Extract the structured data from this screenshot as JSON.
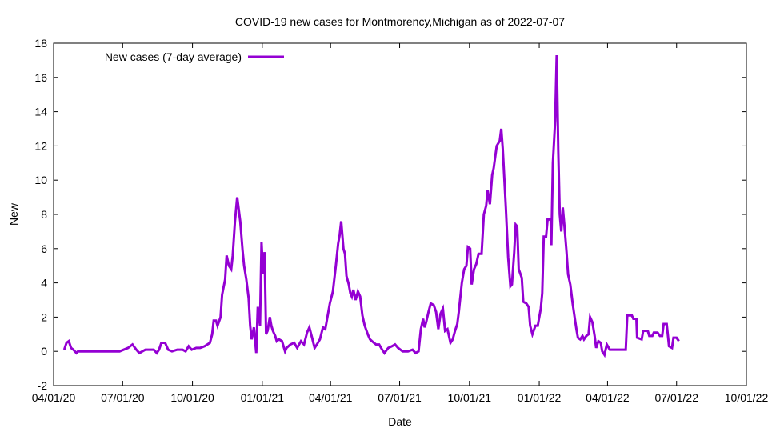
{
  "chart_data": {
    "type": "line",
    "title": "COVID-19 new cases for Montmorency,Michigan as of 2022-07-07",
    "xlabel": "Date",
    "ylabel": "New",
    "x_units": "days since 2020-04-01",
    "xlim": [
      0,
      913
    ],
    "ylim": [
      -2,
      18
    ],
    "yticks": [
      -2,
      0,
      2,
      4,
      6,
      8,
      10,
      12,
      14,
      16,
      18
    ],
    "xticks": [
      {
        "day": 0,
        "label": "04/01/20"
      },
      {
        "day": 91,
        "label": "07/01/20"
      },
      {
        "day": 183,
        "label": "10/01/20"
      },
      {
        "day": 275,
        "label": "01/01/21"
      },
      {
        "day": 365,
        "label": "04/01/21"
      },
      {
        "day": 456,
        "label": "07/01/21"
      },
      {
        "day": 548,
        "label": "10/01/21"
      },
      {
        "day": 640,
        "label": "01/01/22"
      },
      {
        "day": 730,
        "label": "04/01/22"
      },
      {
        "day": 821,
        "label": "07/01/22"
      },
      {
        "day": 913,
        "label": "10/01/22"
      }
    ],
    "grid": false,
    "legend_position": "top-left",
    "color": "#9400d3",
    "series": [
      {
        "name": "New cases (7-day average)",
        "points": [
          [
            14,
            0.1
          ],
          [
            17,
            0.5
          ],
          [
            20,
            0.6
          ],
          [
            23,
            0.2
          ],
          [
            26,
            0.1
          ],
          [
            30,
            -0.1
          ],
          [
            32,
            0
          ],
          [
            87,
            0
          ],
          [
            98,
            0.2
          ],
          [
            104,
            0.4
          ],
          [
            109,
            0.1
          ],
          [
            113,
            -0.1
          ],
          [
            117,
            0
          ],
          [
            121,
            0.1
          ],
          [
            132,
            0.1
          ],
          [
            136,
            -0.1
          ],
          [
            139,
            0.1
          ],
          [
            142,
            0.5
          ],
          [
            147,
            0.5
          ],
          [
            151,
            0.1
          ],
          [
            156,
            0
          ],
          [
            163,
            0.1
          ],
          [
            170,
            0.1
          ],
          [
            174,
            0
          ],
          [
            178,
            0.3
          ],
          [
            182,
            0.1
          ],
          [
            188,
            0.2
          ],
          [
            193,
            0.2
          ],
          [
            199,
            0.3
          ],
          [
            206,
            0.5
          ],
          [
            209,
            1.0
          ],
          [
            211,
            1.8
          ],
          [
            214,
            1.8
          ],
          [
            216,
            1.5
          ],
          [
            220,
            2.0
          ],
          [
            222,
            3.3
          ],
          [
            226,
            4.2
          ],
          [
            228,
            5.6
          ],
          [
            231,
            5.0
          ],
          [
            234,
            4.8
          ],
          [
            236,
            5.6
          ],
          [
            239,
            7.6
          ],
          [
            242,
            9.0
          ],
          [
            246,
            7.6
          ],
          [
            249,
            5.9
          ],
          [
            251,
            5.0
          ],
          [
            254,
            4.2
          ],
          [
            257,
            3.1
          ],
          [
            259,
            1.5
          ],
          [
            261,
            0.7
          ],
          [
            264,
            1.4
          ],
          [
            267,
            -0.1
          ],
          [
            269,
            2.6
          ],
          [
            272,
            1.5
          ],
          [
            274,
            6.4
          ],
          [
            276,
            4.5
          ],
          [
            278,
            5.8
          ],
          [
            280,
            1.0
          ],
          [
            282,
            1.2
          ],
          [
            285,
            2.0
          ],
          [
            287,
            1.5
          ],
          [
            289,
            1.2
          ],
          [
            292,
            0.9
          ],
          [
            294,
            0.6
          ],
          [
            297,
            0.7
          ],
          [
            301,
            0.6
          ],
          [
            305,
            0
          ],
          [
            307,
            0.2
          ],
          [
            312,
            0.4
          ],
          [
            317,
            0.5
          ],
          [
            321,
            0.2
          ],
          [
            326,
            0.6
          ],
          [
            330,
            0.4
          ],
          [
            334,
            1.1
          ],
          [
            337,
            1.4
          ],
          [
            340,
            0.9
          ],
          [
            344,
            0.2
          ],
          [
            347,
            0.4
          ],
          [
            351,
            0.7
          ],
          [
            355,
            1.4
          ],
          [
            358,
            1.3
          ],
          [
            360,
            1.8
          ],
          [
            364,
            2.8
          ],
          [
            368,
            3.5
          ],
          [
            372,
            5.0
          ],
          [
            375,
            6.3
          ],
          [
            377,
            6.8
          ],
          [
            379,
            7.6
          ],
          [
            382,
            6.0
          ],
          [
            384,
            5.7
          ],
          [
            386,
            4.4
          ],
          [
            389,
            3.9
          ],
          [
            391,
            3.4
          ],
          [
            393,
            3.2
          ],
          [
            395,
            3.6
          ],
          [
            398,
            3.0
          ],
          [
            401,
            3.5
          ],
          [
            404,
            3.2
          ],
          [
            407,
            2.1
          ],
          [
            410,
            1.5
          ],
          [
            414,
            1.0
          ],
          [
            417,
            0.7
          ],
          [
            422,
            0.5
          ],
          [
            425,
            0.4
          ],
          [
            429,
            0.4
          ],
          [
            433,
            0.1
          ],
          [
            436,
            -0.1
          ],
          [
            441,
            0.2
          ],
          [
            446,
            0.3
          ],
          [
            450,
            0.4
          ],
          [
            454,
            0.2
          ],
          [
            460,
            0
          ],
          [
            467,
            0
          ],
          [
            473,
            0.1
          ],
          [
            477,
            -0.1
          ],
          [
            481,
            0
          ],
          [
            484,
            1.3
          ],
          [
            487,
            1.9
          ],
          [
            489,
            1.4
          ],
          [
            491,
            1.7
          ],
          [
            494,
            2.3
          ],
          [
            497,
            2.8
          ],
          [
            501,
            2.7
          ],
          [
            504,
            2.3
          ],
          [
            507,
            1.3
          ],
          [
            510,
            2.2
          ],
          [
            513,
            2.5
          ],
          [
            516,
            1.2
          ],
          [
            519,
            1.3
          ],
          [
            521,
            0.9
          ],
          [
            523,
            0.5
          ],
          [
            526,
            0.7
          ],
          [
            529,
            1.2
          ],
          [
            532,
            1.6
          ],
          [
            534,
            2.3
          ],
          [
            538,
            4.0
          ],
          [
            541,
            4.8
          ],
          [
            544,
            5.0
          ],
          [
            546,
            6.1
          ],
          [
            549,
            6.0
          ],
          [
            551,
            3.9
          ],
          [
            554,
            4.8
          ],
          [
            557,
            5.1
          ],
          [
            560,
            5.7
          ],
          [
            564,
            5.7
          ],
          [
            567,
            8.0
          ],
          [
            570,
            8.5
          ],
          [
            572,
            9.4
          ],
          [
            575,
            8.6
          ],
          [
            578,
            10.3
          ],
          [
            580,
            10.7
          ],
          [
            584,
            12.0
          ],
          [
            588,
            12.3
          ],
          [
            590,
            13.0
          ],
          [
            592,
            11.8
          ],
          [
            596,
            8.4
          ],
          [
            599,
            5.5
          ],
          [
            602,
            3.8
          ],
          [
            604,
            3.9
          ],
          [
            607,
            5.8
          ],
          [
            609,
            7.4
          ],
          [
            611,
            7.3
          ],
          [
            613,
            4.8
          ],
          [
            617,
            4.3
          ],
          [
            619,
            2.9
          ],
          [
            623,
            2.8
          ],
          [
            626,
            2.6
          ],
          [
            628,
            1.5
          ],
          [
            631,
            1.0
          ],
          [
            635,
            1.5
          ],
          [
            638,
            1.5
          ],
          [
            642,
            2.5
          ],
          [
            644,
            3.4
          ],
          [
            646,
            6.7
          ],
          [
            649,
            6.7
          ],
          [
            651,
            7.7
          ],
          [
            655,
            7.7
          ],
          [
            656,
            6.2
          ],
          [
            658,
            11.0
          ],
          [
            661,
            13.5
          ],
          [
            663,
            17.3
          ],
          [
            665,
            11.8
          ],
          [
            667,
            8.0
          ],
          [
            669,
            7.0
          ],
          [
            671,
            8.4
          ],
          [
            673,
            7.4
          ],
          [
            676,
            5.8
          ],
          [
            678,
            4.5
          ],
          [
            681,
            3.9
          ],
          [
            684,
            2.8
          ],
          [
            687,
            1.9
          ],
          [
            689,
            1.3
          ],
          [
            691,
            0.8
          ],
          [
            694,
            0.7
          ],
          [
            697,
            0.9
          ],
          [
            699,
            0.7
          ],
          [
            702,
            0.9
          ],
          [
            705,
            1.0
          ],
          [
            707,
            2.0
          ],
          [
            710,
            1.7
          ],
          [
            713,
            0.9
          ],
          [
            715,
            0.2
          ],
          [
            718,
            0.6
          ],
          [
            721,
            0.5
          ],
          [
            723,
            0
          ],
          [
            726,
            -0.2
          ],
          [
            729,
            0.4
          ],
          [
            733,
            0.1
          ],
          [
            736,
            0.1
          ],
          [
            739,
            0.1
          ],
          [
            743,
            0.1
          ],
          [
            748,
            0.1
          ],
          [
            754,
            0.1
          ],
          [
            756,
            2.1
          ],
          [
            762,
            2.1
          ],
          [
            764,
            1.9
          ],
          [
            768,
            1.9
          ],
          [
            769,
            0.8
          ],
          [
            775,
            0.7
          ],
          [
            777,
            1.2
          ],
          [
            783,
            1.2
          ],
          [
            785,
            0.9
          ],
          [
            789,
            0.9
          ],
          [
            791,
            1.1
          ],
          [
            796,
            1.1
          ],
          [
            799,
            0.9
          ],
          [
            802,
            0.9
          ],
          [
            804,
            1.6
          ],
          [
            808,
            1.6
          ],
          [
            811,
            0.3
          ],
          [
            815,
            0.2
          ],
          [
            817,
            0.8
          ],
          [
            821,
            0.8
          ],
          [
            824,
            0.6
          ]
        ]
      }
    ]
  }
}
